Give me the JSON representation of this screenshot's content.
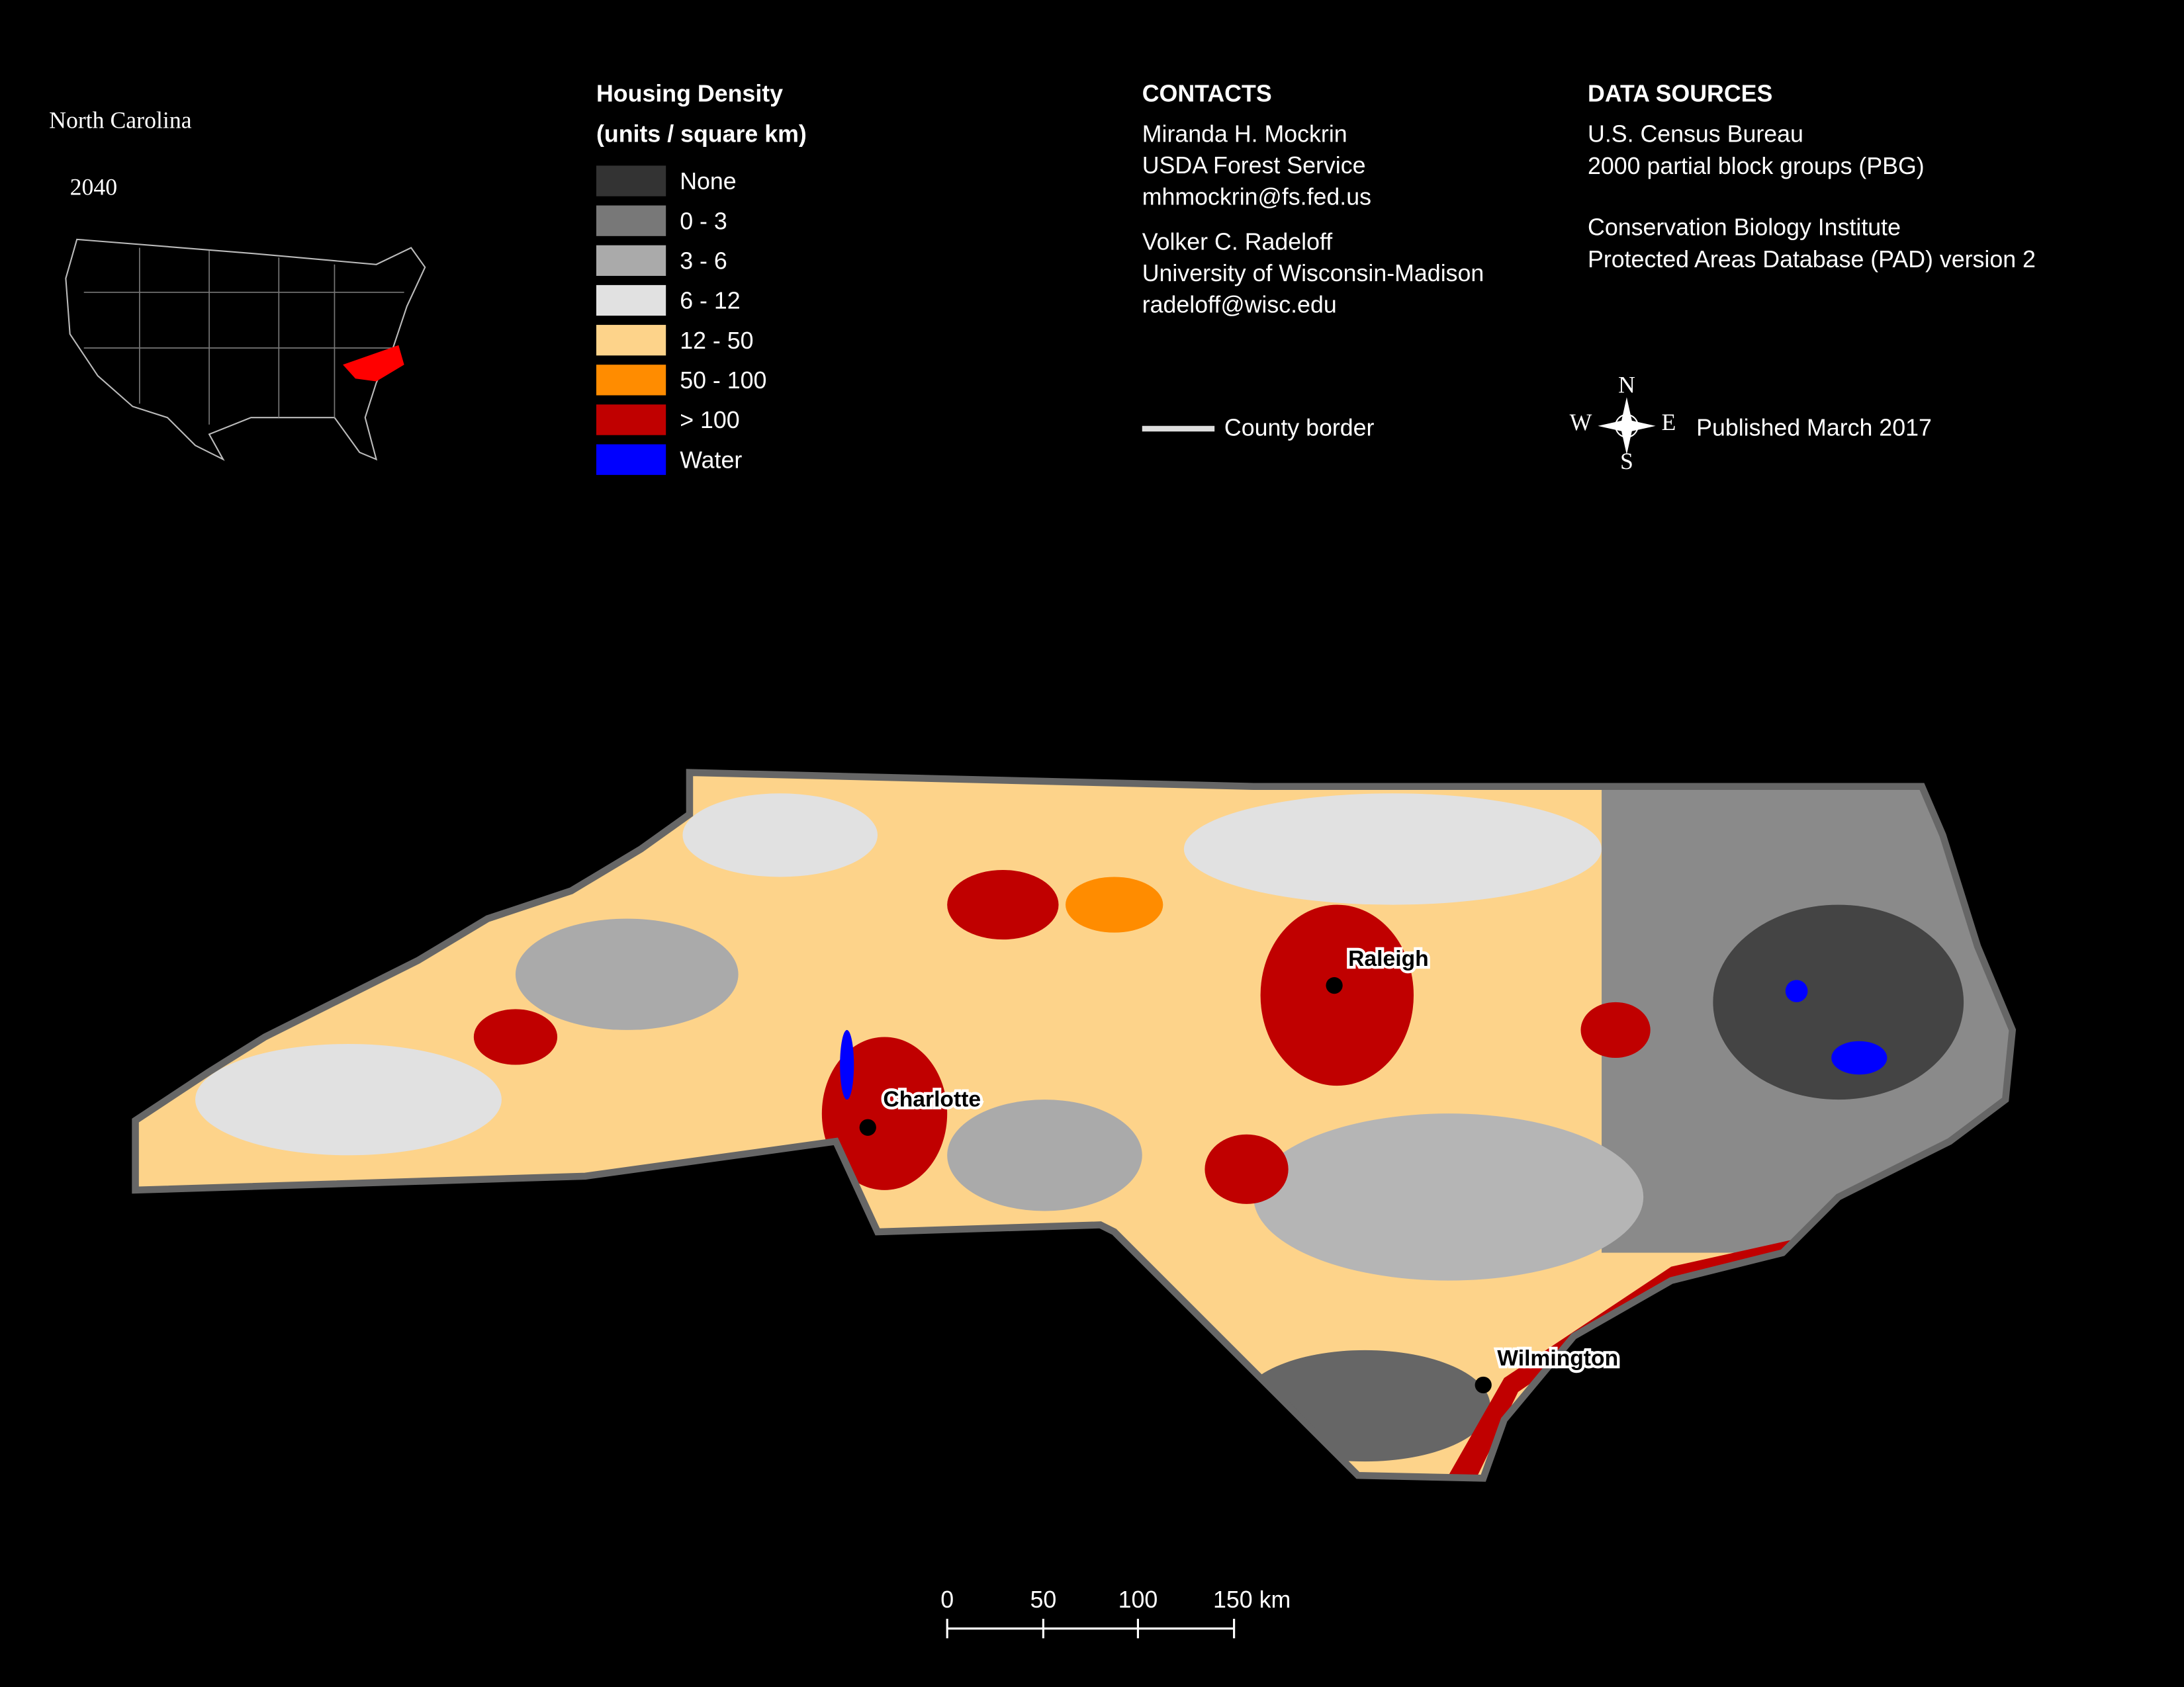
{
  "header": {
    "title": "North Carolina",
    "year": "2040"
  },
  "legend": {
    "title_lines": [
      "Housing Density",
      "(units / square km)"
    ],
    "items": [
      {
        "label": "None",
        "color": "#333333"
      },
      {
        "label": "0 - 3",
        "color": "#787878"
      },
      {
        "label": "3 - 6",
        "color": "#aaaaaa"
      },
      {
        "label": "6 - 12",
        "color": "#e1e1e1"
      },
      {
        "label": "12 - 50",
        "color": "#fdd38a"
      },
      {
        "label": "50 - 100",
        "color": "#ff8c00"
      },
      {
        "label": "> 100",
        "color": "#c00000"
      },
      {
        "label": "Water",
        "color": "#0000ff"
      }
    ]
  },
  "contacts": {
    "heading": "CONTACTS",
    "people": [
      [
        "Miranda H. Mockrin",
        "USDA Forest Service",
        "mhmockrin@fs.fed.us"
      ],
      [
        "Volker C. Radeloff",
        "University of Wisconsin-Madison",
        "radeloff@wisc.edu"
      ]
    ]
  },
  "data_sources": {
    "heading": "DATA SOURCES",
    "groups": [
      [
        "U.S. Census Bureau",
        "2000 partial block groups (PBG)"
      ],
      [
        "Conservation Biology Institute",
        "Protected Areas Database (PAD) version 2"
      ]
    ]
  },
  "county_border": "County border",
  "compass": [
    "N",
    "S",
    "W",
    "E"
  ],
  "published": "Published March 2017",
  "cities": [
    "Raleigh",
    "Charlotte",
    "Wilmington"
  ],
  "scale_bar": [
    "0",
    "50",
    "100",
    "150 km"
  ]
}
